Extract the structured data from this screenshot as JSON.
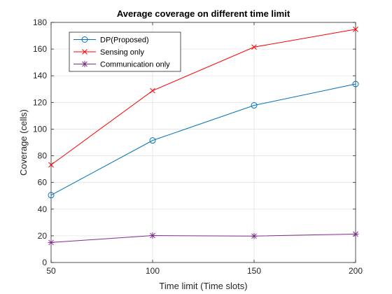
{
  "chart_data": {
    "type": "line",
    "title": "Average coverage on different time limit",
    "xlabel": "Time limit (Time slots)",
    "ylabel": "Coverage (cells)",
    "x": [
      50,
      100,
      150,
      200
    ],
    "xlim": [
      50,
      200
    ],
    "ylim": [
      0,
      180
    ],
    "xticks": [
      50,
      100,
      150,
      200
    ],
    "yticks": [
      0,
      20,
      40,
      60,
      80,
      100,
      120,
      140,
      160,
      180
    ],
    "grid": true,
    "legend_position": "top-left",
    "series": [
      {
        "name": "DP(Proposed)",
        "values": [
          50.5,
          91.5,
          117.8,
          133.8
        ],
        "color": "#0072BD",
        "marker": "circle"
      },
      {
        "name": "Sensing only",
        "values": [
          73.2,
          128.8,
          161.5,
          174.8
        ],
        "color": "#FF0000",
        "marker": "x"
      },
      {
        "name": "Communication only",
        "values": [
          15,
          20.2,
          19.8,
          21.3
        ],
        "color": "#7E2F8E",
        "marker": "asterisk"
      }
    ]
  }
}
